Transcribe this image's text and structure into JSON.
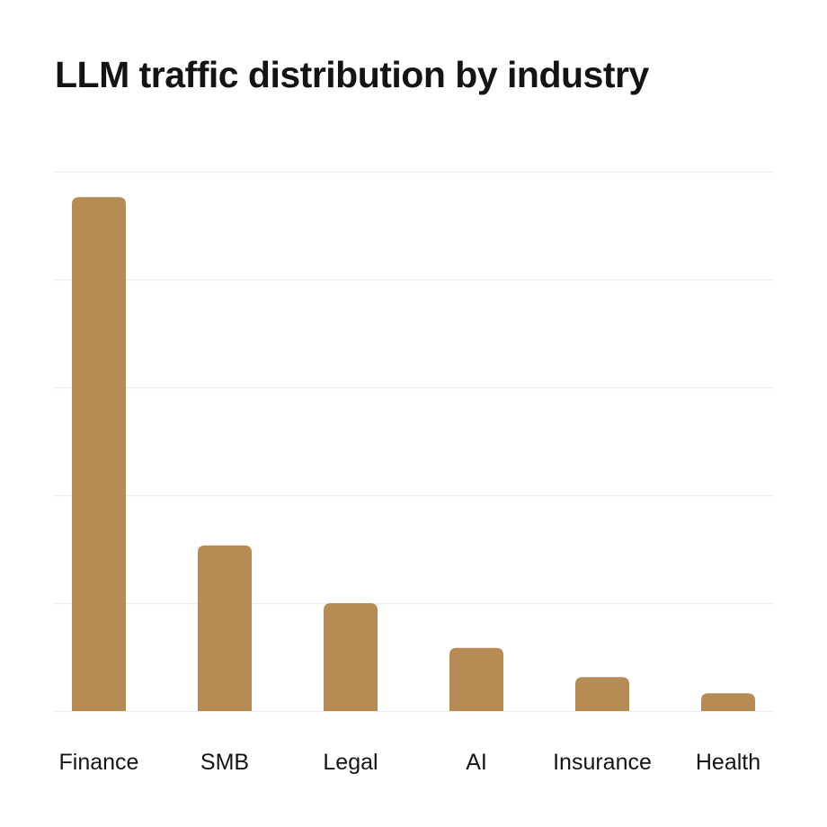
{
  "colors": {
    "bar": "#b68c54",
    "grid": "#f0f0f0",
    "text": "#141414",
    "background": "#ffffff"
  },
  "chart_data": {
    "type": "bar",
    "title": "LLM traffic distribution by industry",
    "categories": [
      "Finance",
      "SMB",
      "Legal",
      "AI",
      "Insurance",
      "Health"
    ],
    "values": [
      95.3,
      30.7,
      20,
      11.7,
      6.3,
      3.3
    ],
    "xlabel": "",
    "ylabel": "",
    "ylim": [
      0,
      100
    ],
    "grid": true,
    "legend": "none"
  }
}
